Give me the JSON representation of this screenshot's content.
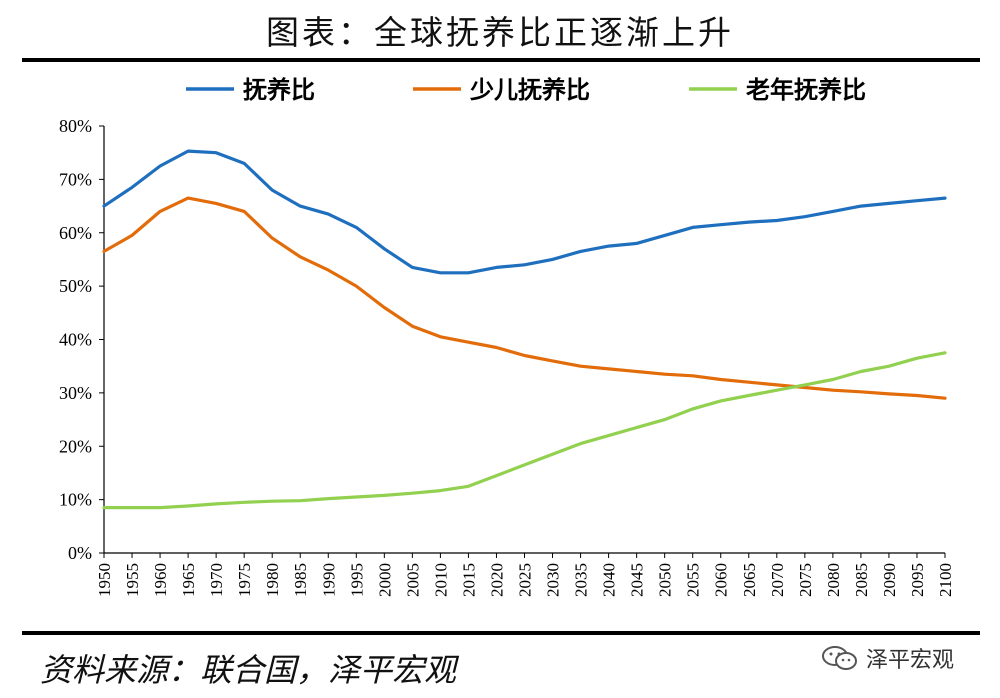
{
  "title": "图表：全球抚养比正逐渐上升",
  "source": "资料来源：联合国，泽平宏观",
  "watermark": {
    "text": "泽平宏观",
    "icon": "wechat-icon"
  },
  "chart_data": {
    "type": "line",
    "title": "",
    "xlabel": "",
    "ylabel": "",
    "ylim": [
      0,
      80
    ],
    "y_ticks": [
      "0%",
      "10%",
      "20%",
      "30%",
      "40%",
      "50%",
      "60%",
      "70%",
      "80%"
    ],
    "x_ticks": [
      "1950",
      "1955",
      "1960",
      "1965",
      "1970",
      "1975",
      "1980",
      "1985",
      "1990",
      "1995",
      "2000",
      "2005",
      "2010",
      "2015",
      "2020",
      "2025",
      "2030",
      "2035",
      "2040",
      "2045",
      "2050",
      "2055",
      "2060",
      "2065",
      "2070",
      "2075",
      "2080",
      "2085",
      "2090",
      "2095",
      "2100"
    ],
    "grid": false,
    "legend_position": "top",
    "x": [
      1950,
      1955,
      1960,
      1965,
      1970,
      1975,
      1980,
      1985,
      1990,
      1995,
      2000,
      2005,
      2010,
      2015,
      2020,
      2025,
      2030,
      2035,
      2040,
      2045,
      2050,
      2055,
      2060,
      2065,
      2070,
      2075,
      2080,
      2085,
      2090,
      2095,
      2100
    ],
    "series": [
      {
        "name": "抚养比",
        "color": "#1F6FBF",
        "values": [
          65,
          68.5,
          72.5,
          75.3,
          75,
          73,
          68,
          65,
          63.5,
          61,
          57,
          53.5,
          52.5,
          52.5,
          53.5,
          54,
          55,
          56.5,
          57.5,
          58,
          59.5,
          61,
          61.5,
          62,
          62.3,
          63,
          64,
          65,
          65.5,
          66,
          66.5
        ]
      },
      {
        "name": "少儿抚养比",
        "color": "#E36C0A",
        "values": [
          56.5,
          59.5,
          64,
          66.5,
          65.5,
          64,
          59,
          55.5,
          53,
          50,
          46,
          42.5,
          40.5,
          39.5,
          38.5,
          37,
          36,
          35,
          34.5,
          34,
          33.5,
          33.2,
          32.5,
          32,
          31.5,
          31,
          30.5,
          30.2,
          29.8,
          29.5,
          29
        ]
      },
      {
        "name": "老年抚养比",
        "color": "#92D050",
        "values": [
          8.5,
          8.5,
          8.5,
          8.8,
          9.2,
          9.5,
          9.7,
          9.8,
          10.2,
          10.5,
          10.8,
          11.2,
          11.7,
          12.5,
          14.5,
          16.5,
          18.5,
          20.5,
          22,
          23.5,
          25,
          27,
          28.5,
          29.5,
          30.5,
          31.5,
          32.5,
          34,
          35,
          36.5,
          37.5
        ]
      }
    ]
  }
}
